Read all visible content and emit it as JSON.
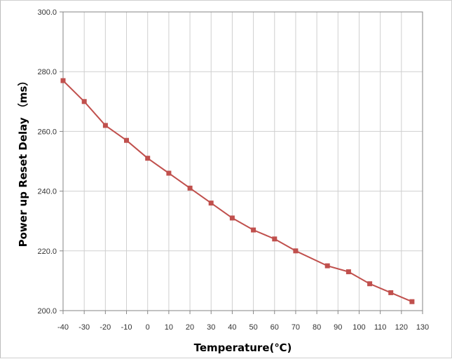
{
  "chart_data": {
    "type": "line",
    "title": "",
    "xlabel": "Temperature(℃)",
    "ylabel": "Power up Reset Delay （ms）",
    "x": [
      -40,
      -30,
      -20,
      -10,
      0,
      10,
      20,
      30,
      40,
      50,
      60,
      70,
      85,
      95,
      105,
      115,
      125
    ],
    "series": [
      {
        "values": [
          277,
          270,
          262,
          257,
          251,
          246,
          241,
          236,
          231,
          227,
          224,
          220,
          215,
          213,
          209,
          206,
          203
        ],
        "color": "#c0504d"
      }
    ],
    "xlim": [
      -40,
      130
    ],
    "ylim": [
      200,
      300
    ],
    "xticks": [
      "-40",
      "-30",
      "-20",
      "-10",
      "0",
      "10",
      "20",
      "30",
      "40",
      "50",
      "60",
      "70",
      "80",
      "90",
      "100",
      "110",
      "120",
      "130"
    ],
    "yticks": [
      "200.0",
      "220.0",
      "240.0",
      "260.0",
      "280.0",
      "300.0"
    ],
    "grid": true,
    "legend": "none",
    "marker": "square"
  }
}
